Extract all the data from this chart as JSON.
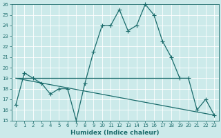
{
  "xlabel": "Humidex (Indice chaleur)",
  "bg_color": "#cceaea",
  "line_color": "#1a6b6b",
  "grid_color": "#ffffff",
  "ylim": [
    15,
    26
  ],
  "xlim": [
    -0.5,
    23.5
  ],
  "yticks": [
    15,
    16,
    17,
    18,
    19,
    20,
    21,
    22,
    23,
    24,
    25,
    26
  ],
  "xticks": [
    0,
    1,
    2,
    3,
    4,
    5,
    6,
    7,
    8,
    9,
    10,
    11,
    12,
    13,
    14,
    15,
    16,
    17,
    18,
    19,
    20,
    21,
    22,
    23
  ],
  "series1_x": [
    0,
    1,
    2,
    3,
    4,
    5,
    6,
    7,
    8,
    9,
    10,
    11,
    12,
    13,
    14,
    15,
    16,
    17,
    18,
    19,
    20,
    21,
    22,
    23
  ],
  "series1_y": [
    16.5,
    19.5,
    19.0,
    18.5,
    17.5,
    18.0,
    18.0,
    15.0,
    18.5,
    21.5,
    24.0,
    24.0,
    25.5,
    23.5,
    24.0,
    26.0,
    25.0,
    22.5,
    21.0,
    19.0,
    19.0,
    16.0,
    17.0,
    15.5
  ],
  "series2_x": [
    0,
    23
  ],
  "series2_y": [
    19.0,
    15.5
  ],
  "hline_x": [
    0,
    19
  ],
  "hline_y": [
    19.0,
    19.0
  ],
  "marker": "+",
  "markersize": 4,
  "markeredgewidth": 0.8,
  "linewidth": 0.9,
  "tick_fontsize": 5,
  "label_fontsize": 6.5
}
